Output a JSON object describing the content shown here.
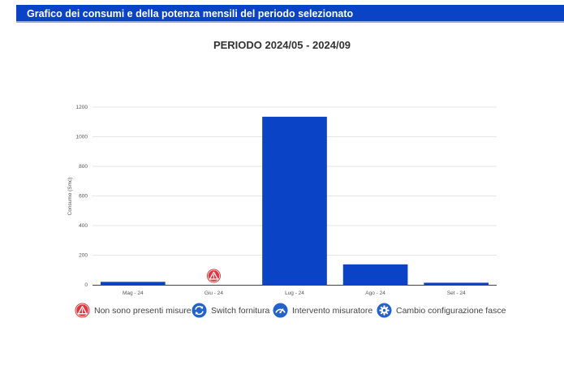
{
  "header": {
    "title": "Grafico dei consumi e della potenza mensili del periodo selezionato"
  },
  "chart_data": {
    "type": "bar",
    "title": "PERIODO 2024/05 - 2024/09",
    "xlabel": "",
    "ylabel": "Consumo (Smc)",
    "categories": [
      "Mag - 24",
      "Giu - 24",
      "Lug - 24",
      "Ago - 24",
      "Set - 24"
    ],
    "series": [
      {
        "values": [
          20,
          0,
          1135,
          138,
          14
        ]
      }
    ],
    "ylim": [
      0,
      1200
    ],
    "yticks": [
      0,
      200,
      400,
      600,
      800,
      1000,
      1200
    ],
    "grid": true,
    "bar_color": "#0a43c6",
    "annotations": [
      {
        "category": "Giu - 24",
        "icon": "warning-icon",
        "color": "#e0353f"
      }
    ]
  },
  "legend": {
    "items": [
      {
        "label": "Non sono presenti misure",
        "icon": "warning-icon",
        "color": "#e0353f"
      },
      {
        "label": "Switch fornitura",
        "icon": "switch-icon",
        "color": "#2463cc"
      },
      {
        "label": "Intervento misuratore",
        "icon": "gauge-icon",
        "color": "#2463cc"
      },
      {
        "label": "Cambio configurazione fasce",
        "icon": "gear-icon",
        "color": "#2463cc"
      }
    ]
  }
}
